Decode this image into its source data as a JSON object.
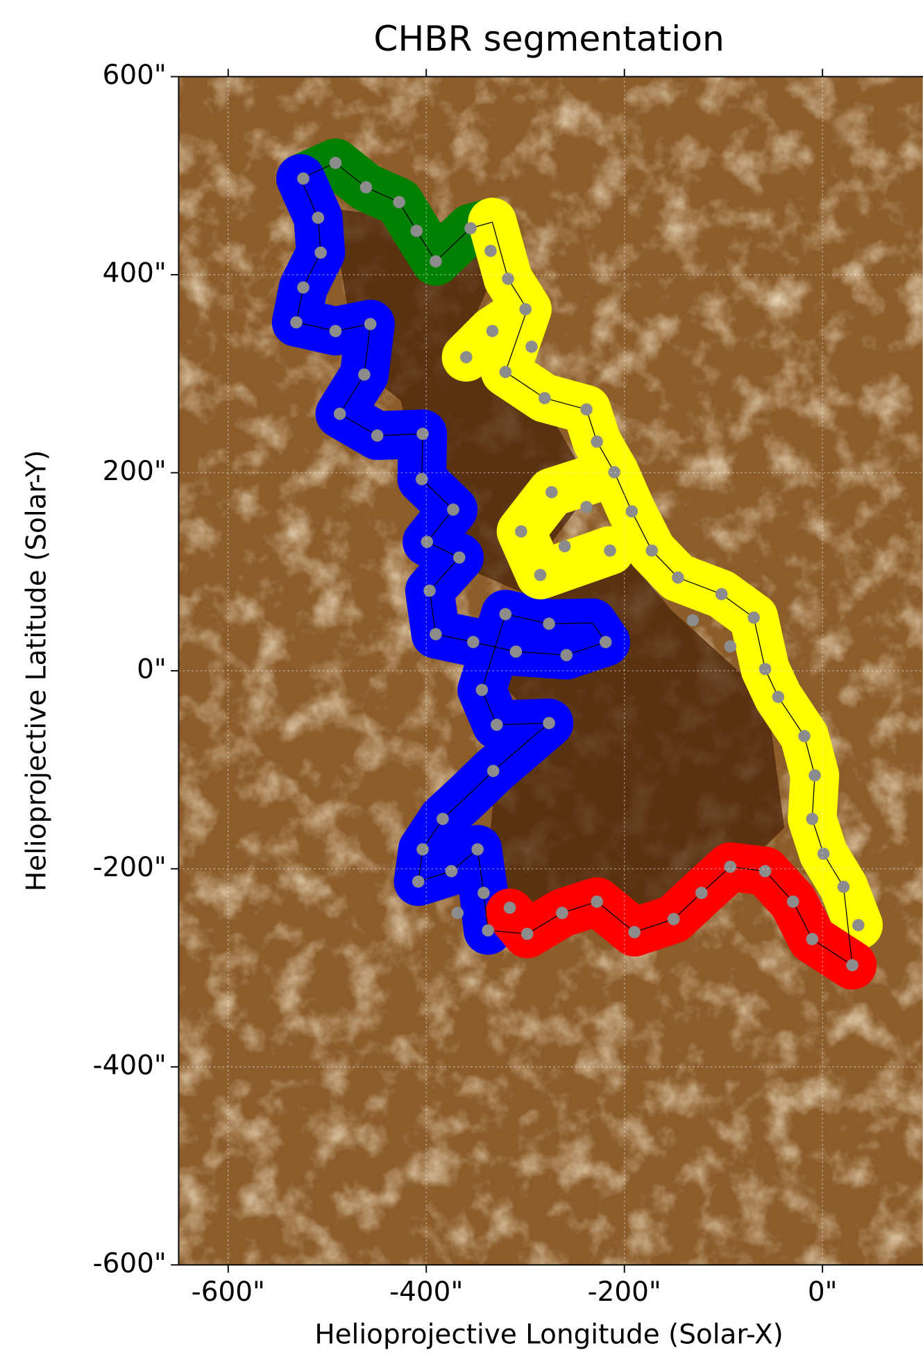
{
  "chart_data": {
    "type": "image",
    "title": "CHBR segmentation",
    "xlabel": "Helioprojective Longitude (Solar-X)",
    "ylabel": "Helioprojective Latitude (Solar-Y)",
    "xlim": [
      -650,
      100
    ],
    "ylim": [
      -600,
      600
    ],
    "xticks": [
      {
        "value": -600,
        "label": "-600\""
      },
      {
        "value": -400,
        "label": "-400\""
      },
      {
        "value": -200,
        "label": "-200\""
      },
      {
        "value": 0,
        "label": "0\""
      }
    ],
    "yticks": [
      {
        "value": -600,
        "label": "-600\""
      },
      {
        "value": -400,
        "label": "-400\""
      },
      {
        "value": -200,
        "label": "-200\""
      },
      {
        "value": 0,
        "label": "0\""
      },
      {
        "value": 200,
        "label": "200\""
      },
      {
        "value": 400,
        "label": "400\""
      },
      {
        "value": 600,
        "label": "600\""
      }
    ],
    "grid": true
  }
}
